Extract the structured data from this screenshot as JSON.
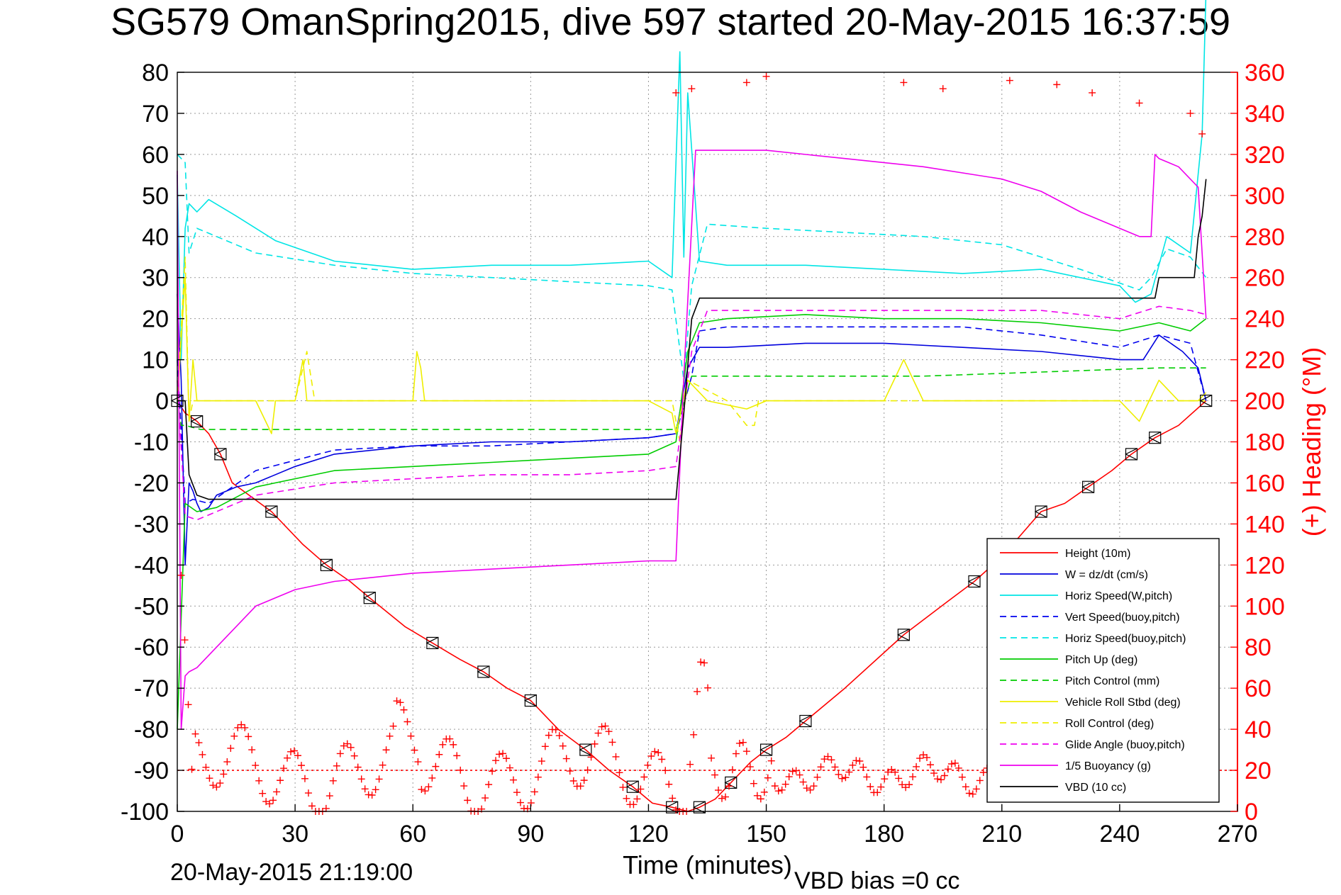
{
  "chart_data": {
    "type": "line",
    "title": "SG579 OmanSpring2015, dive 597 started 20-May-2015 16:37:59",
    "xlabel": "Time (minutes)",
    "ylabel": "",
    "y2label": "(+) Heading (°M)",
    "xlim": [
      0,
      270
    ],
    "ylim": [
      -100,
      80
    ],
    "y2lim": [
      0,
      360
    ],
    "x_ticks": [
      "0",
      "30",
      "60",
      "90",
      "120",
      "150",
      "180",
      "210",
      "240",
      "270"
    ],
    "y_ticks": [
      "80",
      "70",
      "60",
      "50",
      "40",
      "30",
      "20",
      "10",
      "0",
      "-10",
      "-20",
      "-30",
      "-40",
      "-50",
      "-60",
      "-70",
      "-80",
      "-90",
      "-100"
    ],
    "y2_ticks": [
      "360",
      "340",
      "320",
      "300",
      "280",
      "260",
      "240",
      "220",
      "200",
      "180",
      "160",
      "140",
      "120",
      "100",
      "80",
      "60",
      "40",
      "20",
      "0"
    ],
    "grid": true,
    "legend_position": "bottom-right",
    "footer_left": "20-May-2015 21:19:00",
    "footer_right": "VBD bias =0 cc",
    "series": [
      {
        "name": "Height (10m)",
        "color": "#ff0000",
        "style": "solid",
        "x": [
          0,
          2,
          5,
          8,
          11,
          14,
          24,
          32,
          38,
          44,
          49,
          58,
          65,
          72,
          78,
          84,
          90,
          97,
          104,
          110,
          116,
          121,
          126,
          130,
          133,
          137,
          141,
          146,
          150,
          155,
          160,
          170,
          185,
          196,
          203,
          210,
          220,
          226,
          232,
          238,
          243,
          246,
          249,
          255,
          262
        ],
        "y": [
          0,
          -3,
          -5,
          -8,
          -13,
          -20,
          -27,
          -35,
          -40,
          -44,
          -48,
          -55,
          -59,
          -63,
          -66,
          -70,
          -73,
          -80,
          -85,
          -90,
          -94,
          -98,
          -99,
          -100,
          -99,
          -97,
          -93,
          -88,
          -85,
          -82,
          -78,
          -70,
          -57,
          -49,
          -44,
          -38,
          -27,
          -25,
          -21,
          -17,
          -13,
          -11,
          -9,
          -6,
          0
        ]
      },
      {
        "name": "W = dz/dt (cm/s)",
        "color": "#0000dd",
        "style": "solid",
        "x": [
          0,
          1,
          2,
          3,
          4,
          5,
          6,
          8,
          10,
          15,
          20,
          30,
          40,
          60,
          80,
          100,
          120,
          127,
          130,
          133,
          140,
          160,
          180,
          200,
          220,
          240,
          246,
          250,
          256,
          260,
          262
        ],
        "y": [
          26,
          5,
          -40,
          -20,
          -22,
          -25,
          -27,
          -26,
          -23,
          -21,
          -20,
          -16,
          -13,
          -11,
          -10,
          -10,
          -9,
          -8,
          8,
          13,
          13,
          14,
          14,
          13,
          12,
          10,
          10,
          16,
          12,
          8,
          0
        ]
      },
      {
        "name": "Horiz Speed(W,pitch)",
        "color": "#00e5e5",
        "style": "solid",
        "x": [
          0,
          1,
          2,
          3,
          5,
          8,
          15,
          25,
          40,
          60,
          80,
          100,
          120,
          126,
          127,
          128,
          129,
          130,
          133,
          140,
          160,
          180,
          200,
          220,
          240,
          244,
          248,
          252,
          258,
          261,
          262
        ],
        "y": [
          55,
          10,
          42,
          48,
          46,
          49,
          45,
          39,
          34,
          32,
          33,
          33,
          34,
          30,
          58,
          85,
          35,
          75,
          34,
          33,
          33,
          32,
          31,
          32,
          28,
          24,
          26,
          40,
          36,
          65,
          100
        ]
      },
      {
        "name": "Vert Speed(buoy,pitch)",
        "color": "#0000ee",
        "style": "dashed",
        "x": [
          0,
          2,
          4,
          8,
          20,
          40,
          60,
          80,
          100,
          120,
          127,
          131,
          133,
          140,
          160,
          180,
          200,
          220,
          240,
          250,
          258,
          262
        ],
        "y": [
          10,
          -25,
          -24,
          -25,
          -17,
          -12,
          -11,
          -11,
          -10,
          -9,
          -8,
          6,
          17,
          18,
          18,
          18,
          18,
          16,
          13,
          16,
          14,
          0
        ]
      },
      {
        "name": "Horiz Speed(buoy,pitch)",
        "color": "#00e5e5",
        "style": "dashed",
        "x": [
          0,
          2,
          3,
          5,
          10,
          20,
          40,
          60,
          80,
          100,
          120,
          126,
          129,
          131,
          135,
          150,
          170,
          190,
          210,
          230,
          245,
          248,
          252,
          258,
          262
        ],
        "y": [
          60,
          58,
          36,
          42,
          40,
          36,
          33,
          31,
          30,
          29,
          28,
          27,
          5,
          28,
          43,
          42,
          41,
          40,
          38,
          32,
          27,
          30,
          37,
          35,
          30
        ]
      },
      {
        "name": "Pitch Up (deg)",
        "color": "#00cc00",
        "style": "solid",
        "x": [
          0,
          2,
          5,
          10,
          20,
          40,
          60,
          80,
          100,
          120,
          127,
          130,
          133,
          140,
          160,
          180,
          200,
          220,
          240,
          250,
          258,
          262
        ],
        "y": [
          -80,
          -25,
          -27,
          -26,
          -21,
          -17,
          -16,
          -15,
          -14,
          -13,
          -10,
          12,
          19,
          20,
          21,
          20,
          20,
          19,
          17,
          19,
          17,
          20
        ]
      },
      {
        "name": "Pitch Control (mm)",
        "color": "#00cc00",
        "style": "dashed",
        "x": [
          0,
          1,
          2,
          6,
          127,
          131,
          190,
          250,
          262
        ],
        "y": [
          0,
          -6,
          -6,
          -7,
          -7,
          6,
          6,
          8,
          8
        ]
      },
      {
        "name": "Vehicle Roll Stbd (deg)",
        "color": "#eeee00",
        "style": "solid",
        "x": [
          0,
          2,
          3,
          4,
          5,
          20,
          24,
          25,
          30,
          32,
          33,
          35,
          60,
          61,
          62,
          63,
          100,
          120,
          126,
          127,
          130,
          135,
          145,
          150,
          155,
          180,
          185,
          190,
          210,
          230,
          240,
          245,
          250,
          255,
          260,
          262
        ],
        "y": [
          0,
          30,
          -5,
          10,
          0,
          0,
          -8,
          0,
          0,
          10,
          0,
          0,
          0,
          12,
          8,
          0,
          0,
          0,
          -3,
          -8,
          5,
          0,
          -2,
          0,
          0,
          0,
          10,
          0,
          0,
          0,
          0,
          -5,
          5,
          0,
          0,
          2
        ]
      },
      {
        "name": "Roll Control (deg)",
        "color": "#eeee00",
        "style": "dashed",
        "x": [
          0,
          2,
          3,
          4,
          6,
          30,
          33,
          35,
          36,
          126,
          128,
          130,
          140,
          145,
          147,
          148,
          150,
          262
        ],
        "y": [
          0,
          35,
          -5,
          0,
          0,
          0,
          12,
          0,
          0,
          0,
          -10,
          5,
          0,
          -6,
          -6,
          0,
          0,
          0
        ]
      },
      {
        "name": "Glide Angle (buoy,pitch)",
        "color": "#ee00ee",
        "style": "dashed",
        "x": [
          0,
          2,
          5,
          10,
          20,
          40,
          60,
          80,
          100,
          120,
          127,
          131,
          135,
          160,
          180,
          200,
          220,
          240,
          250,
          258,
          262
        ],
        "y": [
          5,
          -28,
          -29,
          -27,
          -23,
          -20,
          -19,
          -18,
          -18,
          -17,
          -16,
          12,
          22,
          22,
          22,
          22,
          22,
          20,
          23,
          22,
          21
        ]
      },
      {
        "name": "1/5 Buoyancy (g)",
        "color": "#ee00ee",
        "style": "solid",
        "x": [
          0,
          1,
          2,
          3,
          5,
          10,
          20,
          30,
          40,
          60,
          80,
          100,
          120,
          127,
          129,
          132,
          150,
          170,
          190,
          210,
          220,
          230,
          245,
          248,
          249,
          250,
          255,
          260,
          262
        ],
        "y": [
          56,
          -80,
          -67,
          -66,
          -65,
          -60,
          -50,
          -46,
          -44,
          -42,
          -41,
          -40,
          -39,
          -39,
          6,
          61,
          61,
          59,
          57,
          54,
          51,
          46,
          40,
          40,
          60,
          59,
          57,
          52,
          20
        ]
      },
      {
        "name": "VBD (10 cc)",
        "color": "#000000",
        "style": "solid",
        "x": [
          0,
          2,
          3,
          5,
          8,
          12,
          127,
          129,
          131,
          133,
          240,
          245,
          246,
          247,
          248,
          249,
          250,
          255,
          259,
          260,
          261,
          262
        ],
        "y": [
          0,
          0,
          -18,
          -23,
          -24,
          -24,
          -24,
          -3,
          20,
          25,
          25,
          25,
          25,
          25,
          25,
          25,
          30,
          30,
          30,
          40,
          45,
          54
        ]
      },
      {
        "name": "heading_baseline",
        "axis": "right",
        "color": "#ff0000",
        "style": "dotted",
        "x": [
          0,
          270
        ],
        "y": [
          20,
          20
        ]
      }
    ]
  }
}
